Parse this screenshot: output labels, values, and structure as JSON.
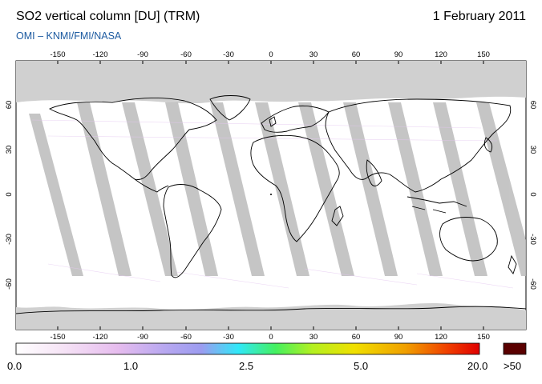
{
  "header": {
    "title": "SO2 vertical column [DU] (TRM)",
    "date": "1 February 2011",
    "credit": "OMI  –  KNMI/FMI/NASA"
  },
  "map": {
    "lon_ticks": [
      "-150",
      "-120",
      "-90",
      "-60",
      "-30",
      "0",
      "30",
      "60",
      "90",
      "120",
      "150"
    ],
    "lat_ticks": [
      "60",
      "30",
      "0",
      "-30",
      "-60"
    ],
    "lon_range": [
      -180,
      180
    ],
    "lat_range": [
      -90,
      90
    ],
    "no_data_color": "#d0d0d0",
    "coastline_color": "#000000"
  },
  "colorbar": {
    "labels": [
      "0.0",
      "1.0",
      "2.5",
      "5.0",
      "20.0"
    ],
    "overflow_label": ">50",
    "colors": [
      "#ffffff",
      "#f2d8f2",
      "#d8a8ec",
      "#9c9cf0",
      "#30e8f8",
      "#44f060",
      "#b4f020",
      "#f0e000",
      "#f0a000",
      "#f04000",
      "#e00000"
    ],
    "overflow_color": "#5a0000"
  }
}
